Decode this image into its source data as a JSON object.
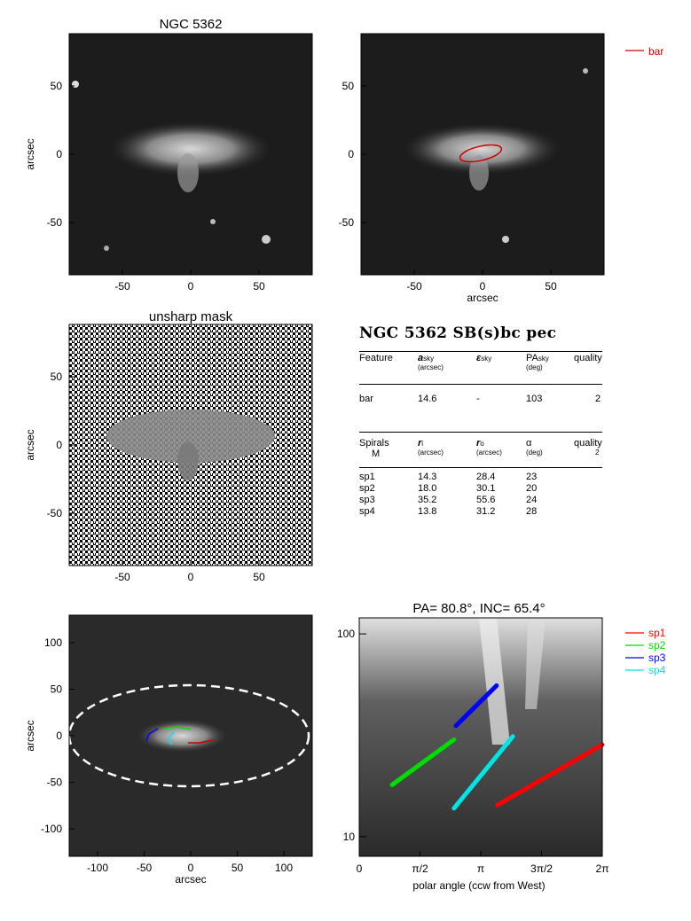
{
  "panels": {
    "p1_title": "NGC 5362",
    "p3_title": "unsharp mask",
    "p6_title": "PA= 80.8°, INC= 65.4°",
    "axis_label_arcsec": "arcsec",
    "ticks_small": [
      "-50",
      "0",
      "50"
    ],
    "ticks_large": [
      "-100",
      "-50",
      "0",
      "50",
      "100"
    ],
    "legend_bar": "bar",
    "polar_xlabel": "polar angle (ccw from West)",
    "polar_xticks": [
      "0",
      "π/2",
      "π",
      "3π/2",
      "2π"
    ],
    "polar_yticks": [
      "10",
      "100"
    ]
  },
  "legend_spirals": [
    {
      "name": "sp1",
      "color": "#ff0000"
    },
    {
      "name": "sp2",
      "color": "#00dd00"
    },
    {
      "name": "sp3",
      "color": "#0000ff"
    },
    {
      "name": "sp4",
      "color": "#00e5e5"
    }
  ],
  "colors": {
    "bar": "#cc0000",
    "ellipse": "#ffffff"
  },
  "table": {
    "header": "NGC 5362  SB(s)bc pec",
    "feature_cols": {
      "c1": "Feature",
      "c2_main": "a",
      "c2_sub": "sky",
      "c2_unit": "(arcsec)",
      "c3_main": "ε",
      "c3_sub": "sky",
      "c4_main": "PA",
      "c4_sub": "sky",
      "c4_unit": "(deg)",
      "c5": "quality"
    },
    "bar_row": [
      "bar",
      "14.6",
      "-",
      "103",
      "2"
    ],
    "spiral_cols": {
      "c1": "Spirals",
      "c1b": "M",
      "c2_main": "r",
      "c2_sub": "i",
      "c2_unit": "(arcsec)",
      "c3_main": "r",
      "c3_sub": "o",
      "c3_unit": "(arcsec)",
      "c4_main": "α",
      "c4_unit": "(deg)",
      "c5": "quality",
      "c5b": "2"
    },
    "spiral_rows": [
      [
        "sp1",
        "14.3",
        "28.4",
        "23"
      ],
      [
        "sp2",
        "18.0",
        "30.1",
        "20"
      ],
      [
        "sp3",
        "35.2",
        "55.6",
        "24"
      ],
      [
        "sp4",
        "13.8",
        "31.2",
        "28"
      ]
    ]
  },
  "chart_data": [
    {
      "type": "scatter",
      "title": "",
      "xlabel": "polar angle (ccw from West)",
      "ylabel": "",
      "xlim": [
        0,
        6.283
      ],
      "ylim_log": [
        8,
        120
      ],
      "series": [
        {
          "name": "sp1",
          "x": [
            3.57,
            6.28
          ],
          "y": [
            14.3,
            28.4
          ]
        },
        {
          "name": "sp2",
          "x": [
            0.85,
            2.45
          ],
          "y": [
            18.0,
            30.1
          ]
        },
        {
          "name": "sp3",
          "x": [
            2.5,
            3.55
          ],
          "y": [
            35.2,
            55.6
          ]
        },
        {
          "name": "sp4",
          "x": [
            2.45,
            3.97
          ],
          "y": [
            13.8,
            31.2
          ]
        }
      ]
    }
  ]
}
